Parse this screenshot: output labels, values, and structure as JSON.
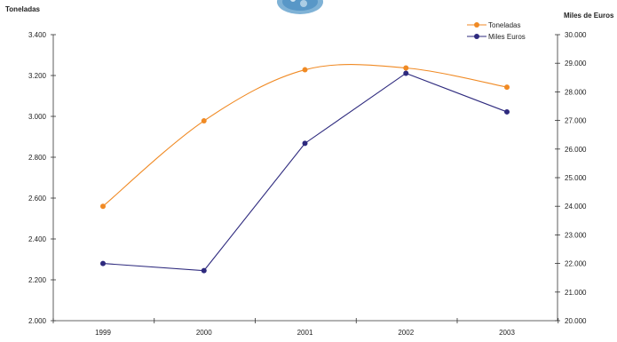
{
  "chart_data": {
    "type": "line",
    "categories": [
      "1999",
      "2000",
      "2001",
      "2002",
      "2003"
    ],
    "left_axis": {
      "title": "Toneladas",
      "ylim": [
        2000,
        3400
      ],
      "ticks": [
        "2.000",
        "2.200",
        "2.400",
        "2.600",
        "2.800",
        "3.000",
        "3.200",
        "3.400"
      ],
      "tick_values": [
        2000,
        2200,
        2400,
        2600,
        2800,
        3000,
        3200,
        3400
      ]
    },
    "right_axis": {
      "title": "Miles de Euros",
      "ylim": [
        20000,
        30000
      ],
      "ticks": [
        "20.000",
        "21.000",
        "22.000",
        "23.000",
        "24.000",
        "25.000",
        "26.000",
        "27.000",
        "28.000",
        "29.000",
        "30.000"
      ],
      "tick_values": [
        20000,
        21000,
        22000,
        23000,
        24000,
        25000,
        26000,
        27000,
        28000,
        29000,
        30000
      ]
    },
    "series": [
      {
        "name": "Toneladas",
        "axis": "left",
        "color": "#f08a24",
        "smooth": true,
        "values": [
          2560,
          2978,
          3228,
          3237,
          3143
        ]
      },
      {
        "name": "Miles Euros",
        "axis": "right",
        "color": "#2e2a7e",
        "smooth": false,
        "values": [
          22000,
          21750,
          26200,
          28650,
          27300
        ]
      }
    ],
    "legend_position": "top-right",
    "grid": false
  }
}
